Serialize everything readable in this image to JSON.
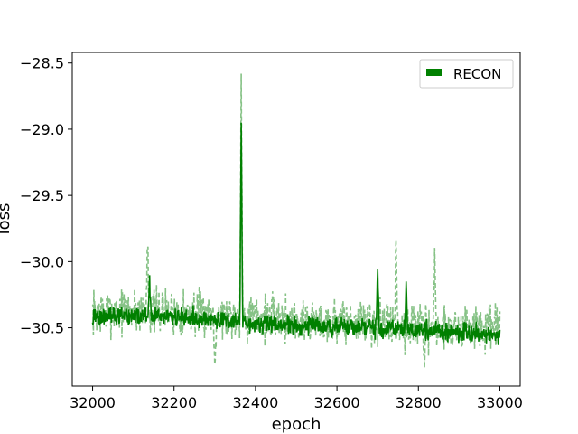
{
  "chart_data": {
    "type": "line",
    "title": "",
    "xlabel": "epoch",
    "ylabel": "loss",
    "xlim": [
      31950,
      33050
    ],
    "ylim": [
      -30.94,
      -28.42
    ],
    "xticks": [
      32000,
      32200,
      32400,
      32600,
      32800,
      33000
    ],
    "xtick_labels": [
      "32000",
      "32200",
      "32400",
      "32600",
      "32800",
      "33000"
    ],
    "yticks": [
      -28.5,
      -29.0,
      -29.5,
      -30.0,
      -30.5
    ],
    "ytick_labels": [
      "−28.5",
      "−29.0",
      "−29.5",
      "−30.0",
      "−30.5"
    ],
    "grid": false,
    "legend": {
      "position": "top-right",
      "entries": [
        "RECON"
      ]
    },
    "colors": {
      "series": "#008000",
      "noisy": "#86c286"
    },
    "series": [
      {
        "name": "RECON",
        "style": "solid",
        "x_start": 32000,
        "x_end": 33000,
        "baseline": [
          [
            32000,
            -30.42
          ],
          [
            32100,
            -30.41
          ],
          [
            32200,
            -30.42
          ],
          [
            32300,
            -30.44
          ],
          [
            32400,
            -30.47
          ],
          [
            32500,
            -30.48
          ],
          [
            32600,
            -30.49
          ],
          [
            32700,
            -30.5
          ],
          [
            32800,
            -30.52
          ],
          [
            32900,
            -30.53
          ],
          [
            33000,
            -30.55
          ]
        ],
        "spread": 0.07,
        "spikes": [
          {
            "x": 32140,
            "y": -30.12
          },
          {
            "x": 32365,
            "y": -28.97
          },
          {
            "x": 32700,
            "y": -30.05
          },
          {
            "x": 32770,
            "y": -30.18
          }
        ]
      },
      {
        "name": "",
        "style": "dashed",
        "x_start": 32000,
        "x_end": 33000,
        "baseline": [
          [
            32000,
            -30.38
          ],
          [
            32100,
            -30.37
          ],
          [
            32200,
            -30.38
          ],
          [
            32300,
            -30.4
          ],
          [
            32400,
            -30.42
          ],
          [
            32500,
            -30.44
          ],
          [
            32600,
            -30.45
          ],
          [
            32700,
            -30.46
          ],
          [
            32800,
            -30.48
          ],
          [
            32900,
            -30.5
          ],
          [
            33000,
            -30.52
          ]
        ],
        "spread": 0.17,
        "spikes": [
          {
            "x": 32135,
            "y": -29.77
          },
          {
            "x": 32365,
            "y": -28.53
          },
          {
            "x": 32745,
            "y": -29.82
          },
          {
            "x": 32840,
            "y": -29.98
          },
          {
            "x": 32300,
            "y": -30.78
          },
          {
            "x": 32815,
            "y": -30.8
          }
        ]
      }
    ]
  }
}
